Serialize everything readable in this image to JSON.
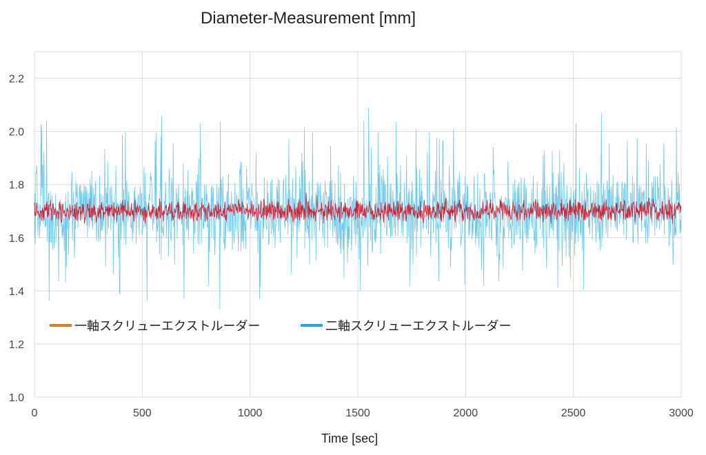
{
  "chart_data": {
    "type": "line",
    "title": "Diameter-Measurement [mm]",
    "xlabel": "Time [sec]",
    "ylabel": "",
    "xlim": [
      0,
      3000
    ],
    "ylim": [
      1.0,
      2.3
    ],
    "x_ticks": [
      "0",
      "500",
      "1000",
      "1500",
      "2000",
      "2500",
      "3000"
    ],
    "y_ticks": [
      "1.0",
      "1.2",
      "1.4",
      "1.6",
      "1.8",
      "2.0",
      "2.2"
    ],
    "grid": true,
    "legend_position": "lower-middle",
    "sample_step_sec": 2,
    "series": [
      {
        "name": "一軸スクリューエクストルーダー",
        "legend_color": "#e07b22",
        "line_color": "#d11a2a",
        "mean": 1.7,
        "typical_range": [
          1.65,
          1.76
        ],
        "peak_events": [
          {
            "x": 1260,
            "y": 1.77
          },
          {
            "x": 1310,
            "y": 1.76
          },
          {
            "x": 2850,
            "y": 1.75
          }
        ]
      },
      {
        "name": "二軸スクリューエクストルーダー",
        "legend_color": "#1aa7e5",
        "line_color": "#5bc4ea",
        "mean": 1.7,
        "typical_range": [
          1.45,
          2.02
        ],
        "peak_events": [
          {
            "x": 860,
            "y": 1.33
          },
          {
            "x": 1550,
            "y": 2.09
          },
          {
            "x": 2630,
            "y": 2.07
          },
          {
            "x": 590,
            "y": 2.06
          },
          {
            "x": 55,
            "y": 2.04
          },
          {
            "x": 1240,
            "y": 1.92
          }
        ]
      }
    ]
  }
}
